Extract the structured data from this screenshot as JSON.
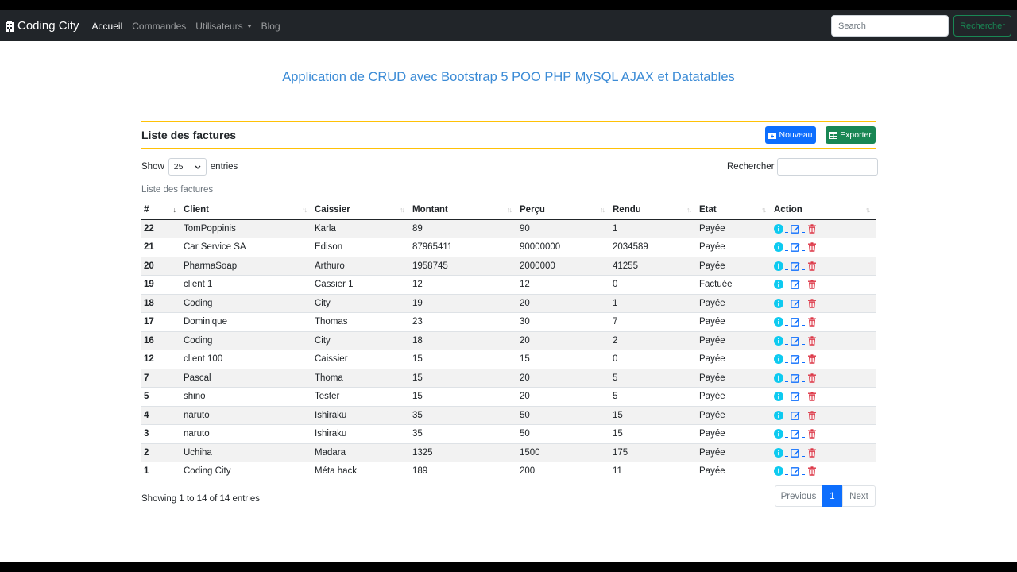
{
  "navbar": {
    "brand": "Coding City",
    "links": [
      "Accueil",
      "Commandes",
      "Utilisateurs",
      "Blog"
    ],
    "search_placeholder": "Search",
    "search_button": "Rechercher"
  },
  "page": {
    "title": "Application de CRUD avec Bootstrap 5 POO PHP MySQL AJAX et Datatables"
  },
  "card": {
    "title": "Liste des factures",
    "new_button": "Nouveau",
    "export_button": "Exporter"
  },
  "datatable": {
    "show_label": "Show",
    "length_value": "25",
    "entries_label": "entries",
    "search_label": "Rechercher",
    "caption": "Liste des factures",
    "columns": [
      "#",
      "Client",
      "Caissier",
      "Montant",
      "Perçu",
      "Rendu",
      "Etat",
      "Action"
    ],
    "rows": [
      [
        "22",
        "TomPoppinis",
        "Karla",
        "89",
        "90",
        "1",
        "Payée"
      ],
      [
        "21",
        "Car Service SA",
        "Edison",
        "87965411",
        "90000000",
        "2034589",
        "Payée"
      ],
      [
        "20",
        "PharmaSoap",
        "Arthuro",
        "1958745",
        "2000000",
        "41255",
        "Payée"
      ],
      [
        "19",
        "client 1",
        "Cassier 1",
        "12",
        "12",
        "0",
        "Factuée"
      ],
      [
        "18",
        "Coding",
        "City",
        "19",
        "20",
        "1",
        "Payée"
      ],
      [
        "17",
        "Dominique",
        "Thomas",
        "23",
        "30",
        "7",
        "Payée"
      ],
      [
        "16",
        "Coding",
        "City",
        "18",
        "20",
        "2",
        "Payée"
      ],
      [
        "12",
        "client 100",
        "Caissier",
        "15",
        "15",
        "0",
        "Payée"
      ],
      [
        "7",
        "Pascal",
        "Thoma",
        "15",
        "20",
        "5",
        "Payée"
      ],
      [
        "5",
        "shino",
        "Tester",
        "15",
        "20",
        "5",
        "Payée"
      ],
      [
        "4",
        "naruto",
        "Ishiraku",
        "35",
        "50",
        "15",
        "Payée"
      ],
      [
        "3",
        "naruto",
        "Ishiraku",
        "35",
        "50",
        "15",
        "Payée"
      ],
      [
        "2",
        "Uchiha",
        "Madara",
        "1325",
        "1500",
        "175",
        "Payée"
      ],
      [
        "1",
        "Coding City",
        "Méta hack",
        "189",
        "200",
        "11",
        "Payée"
      ]
    ],
    "info": "Showing 1 to 14 of 14 entries",
    "pagination": {
      "previous": "Previous",
      "current": "1",
      "next": "Next"
    }
  },
  "colors": {
    "info": "#0dcaf0",
    "edit": "#0d6efd",
    "delete": "#dc3545",
    "primary": "#0d6efd",
    "success": "#198754",
    "warning": "#ffc107"
  }
}
